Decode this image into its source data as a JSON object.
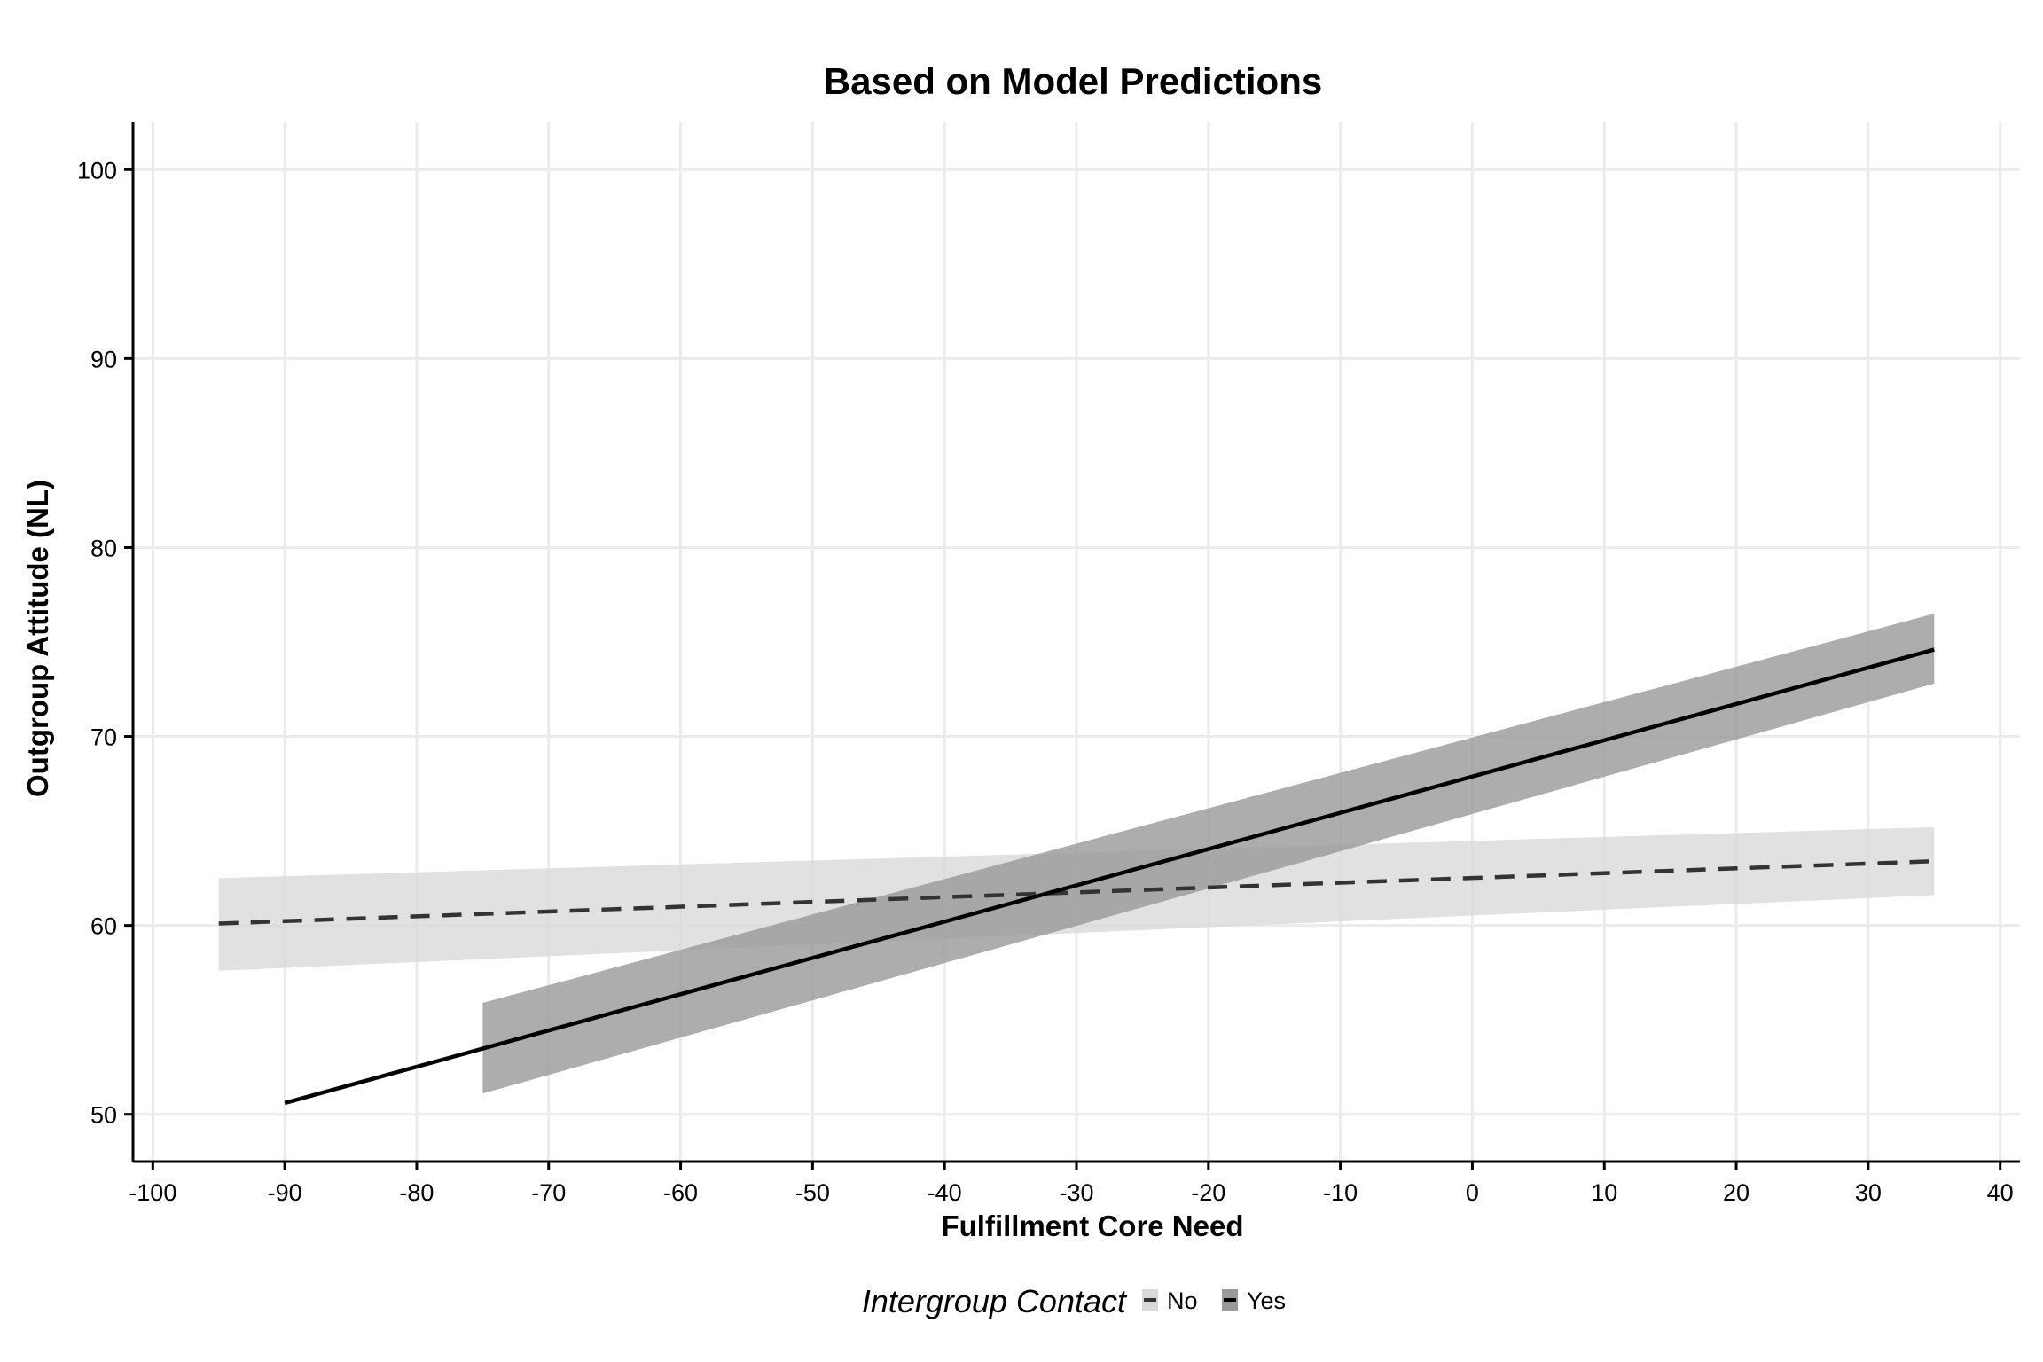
{
  "chart_data": {
    "type": "line",
    "title": "Based on Model Predictions",
    "xlabel": "Fulfillment Core Need",
    "ylabel": "Outgroup Attitude (NL)",
    "xlim": [
      -101.5,
      41.5
    ],
    "ylim": [
      47.5,
      102.5
    ],
    "x_ticks": [
      -100,
      -90,
      -80,
      -70,
      -60,
      -50,
      -40,
      -30,
      -20,
      -10,
      0,
      10,
      20,
      30,
      40
    ],
    "x_tick_labels": [
      "-100",
      "-90",
      "-80",
      "-70",
      "-60",
      "-50",
      "-40",
      "-30",
      "-20",
      "-10",
      "0",
      "10",
      "20",
      "30",
      "40"
    ],
    "y_ticks": [
      50,
      60,
      70,
      80,
      90,
      100
    ],
    "y_tick_labels": [
      "50",
      "60",
      "70",
      "80",
      "90",
      "100"
    ],
    "grid": true,
    "legend": {
      "title": "Intergroup Contact",
      "position": "bottom",
      "entries": [
        "No",
        "Yes"
      ]
    },
    "series": [
      {
        "name": "No",
        "line_style": "dashed",
        "line_color": "#333333",
        "band_color": "#d9d9d9",
        "line": {
          "x": [
            -95,
            35
          ],
          "y": [
            60.1,
            63.4
          ]
        },
        "ribbon": {
          "x": [
            -95,
            35
          ],
          "lower": [
            57.6,
            61.6
          ],
          "upper": [
            62.5,
            65.2
          ]
        }
      },
      {
        "name": "Yes",
        "line_style": "solid",
        "line_color": "#000000",
        "band_color": "#999999",
        "line": {
          "x": [
            -90,
            35
          ],
          "y": [
            50.6,
            74.6
          ]
        },
        "ribbon": {
          "x": [
            -75,
            35
          ],
          "lower": [
            51.1,
            72.8
          ],
          "upper": [
            55.9,
            76.5
          ]
        }
      }
    ]
  }
}
